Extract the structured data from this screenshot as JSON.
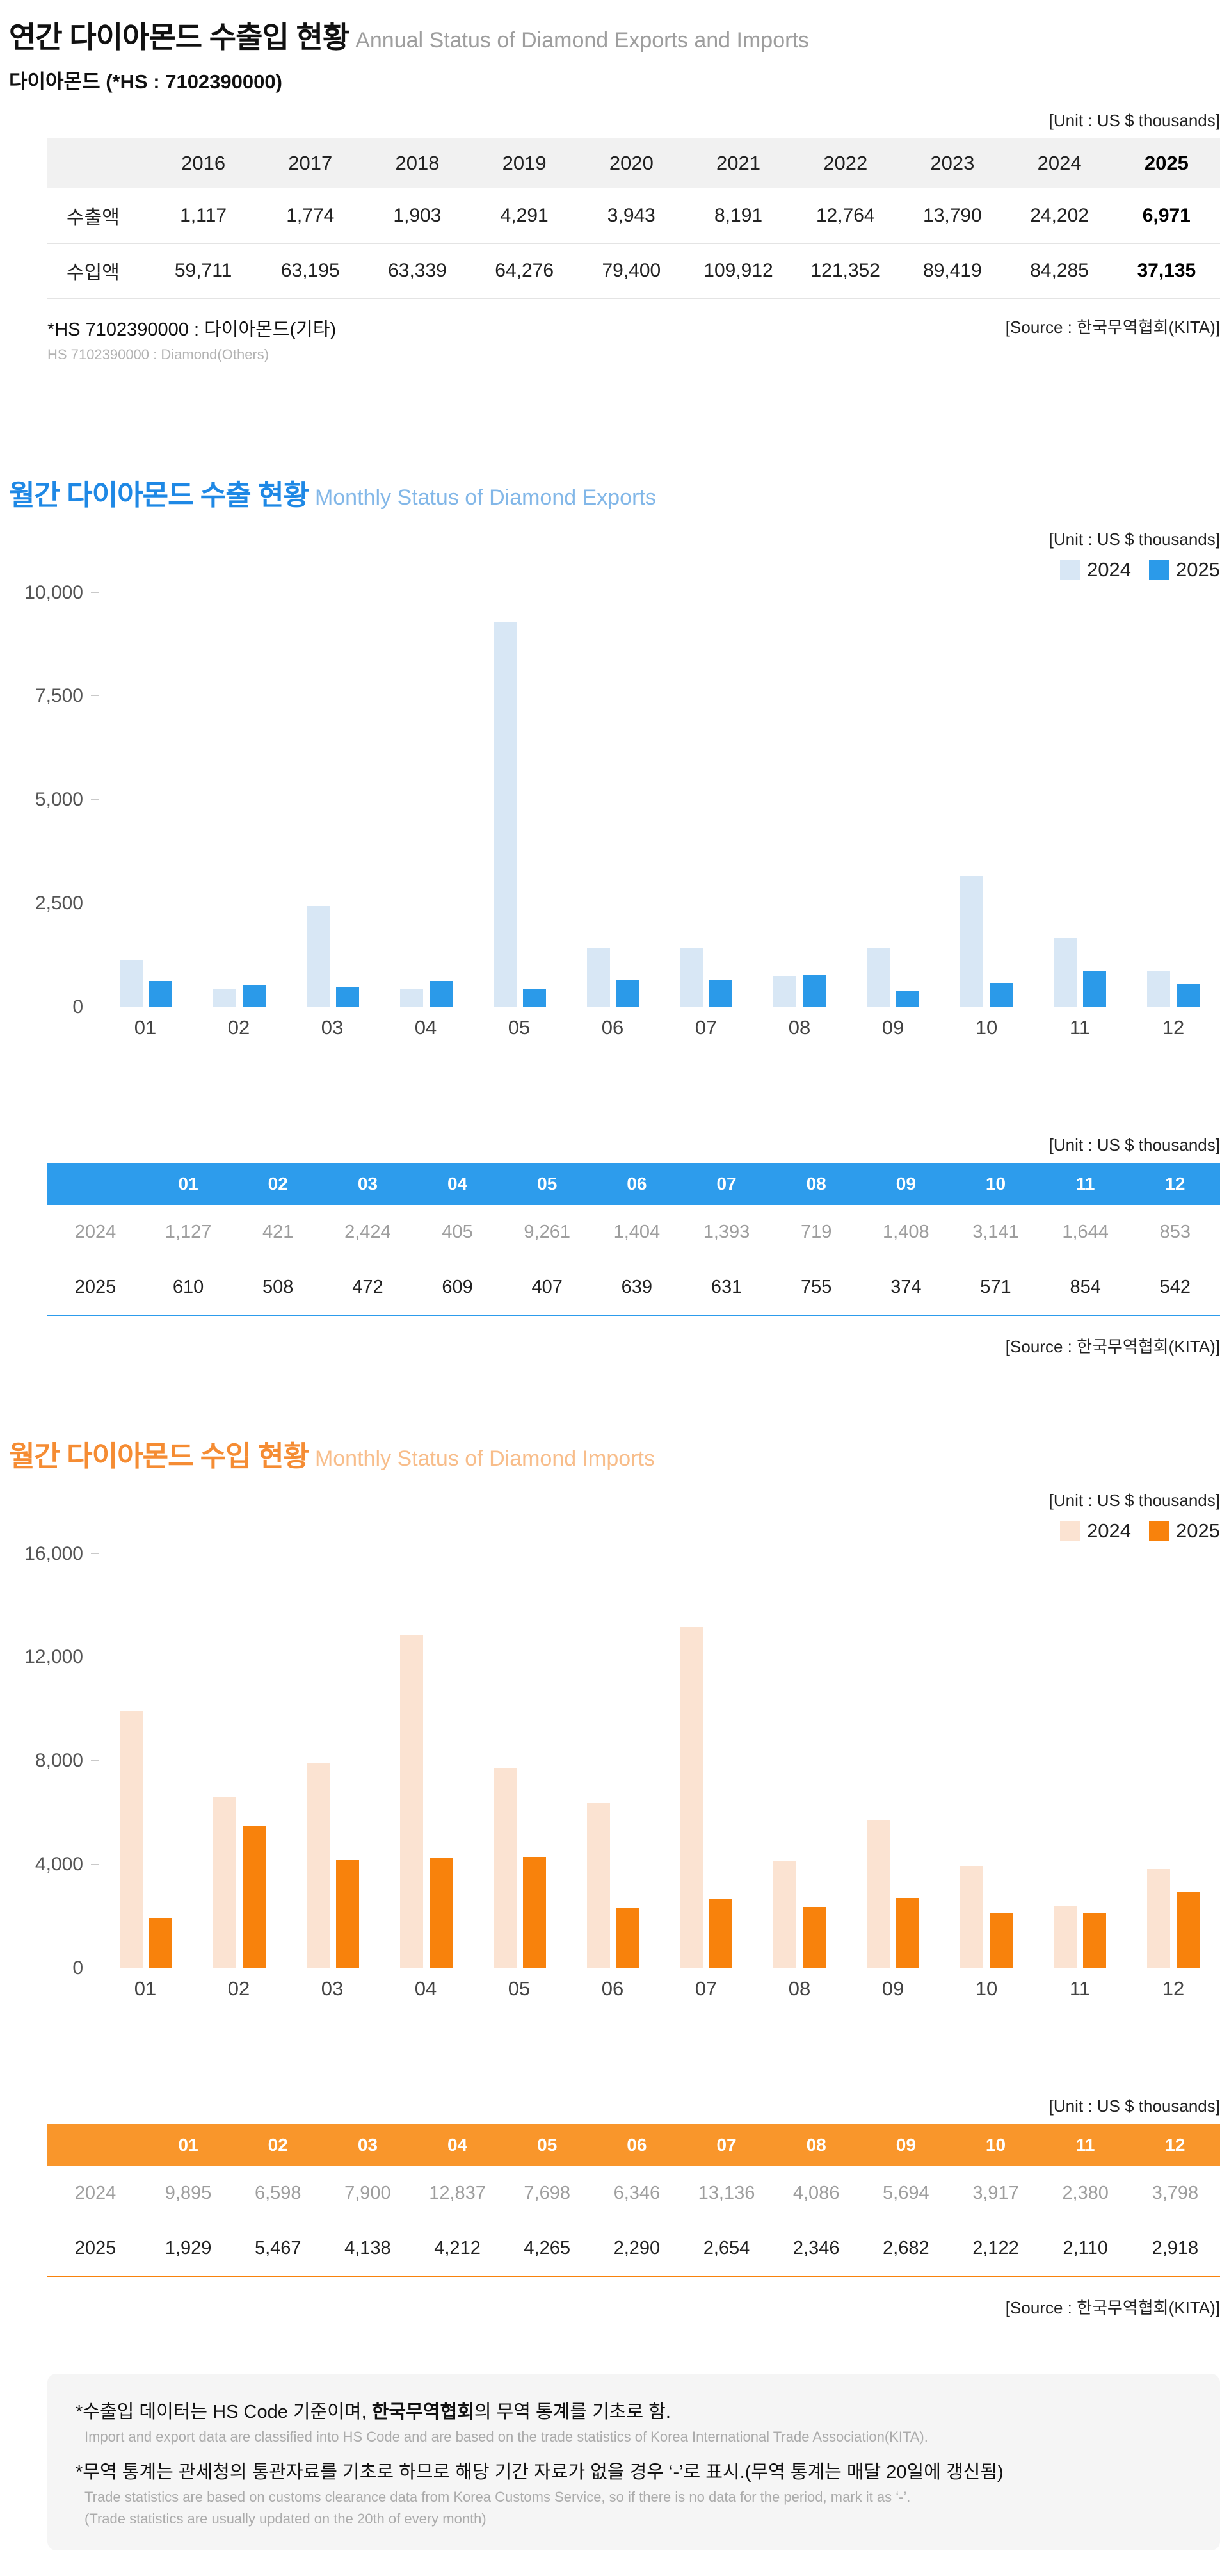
{
  "page": {
    "title_ko": "연간 다이아몬드 수출입 현황",
    "title_en": "Annual Status of Diamond Exports and Imports",
    "subtitle": "다이아몬드 (*HS : 7102390000)",
    "unit_label": "[Unit : US $ thousands]",
    "source_label": "[Source : 한국무역협회(KITA)]"
  },
  "annual_table": {
    "years": [
      "2016",
      "2017",
      "2018",
      "2019",
      "2020",
      "2021",
      "2022",
      "2023",
      "2024",
      "2025"
    ],
    "rows": [
      {
        "label": "수출액",
        "values": [
          "1,117",
          "1,774",
          "1,903",
          "4,291",
          "3,943",
          "8,191",
          "12,764",
          "13,790",
          "24,202",
          "6,971"
        ]
      },
      {
        "label": "수입액",
        "values": [
          "59,711",
          "63,195",
          "63,339",
          "64,276",
          "79,400",
          "109,912",
          "121,352",
          "89,419",
          "84,285",
          "37,135"
        ]
      }
    ],
    "footnote_ko": "*HS 7102390000 : 다이아몬드(기타)",
    "footnote_en": "HS 7102390000 : Diamond(Others)"
  },
  "exports_section": {
    "title_ko": "월간 다이아몬드 수출 현황",
    "title_en": "Monthly Status of Diamond Exports",
    "table": {
      "columns": [
        "01",
        "02",
        "03",
        "04",
        "05",
        "06",
        "07",
        "08",
        "09",
        "10",
        "11",
        "12"
      ],
      "rows": [
        {
          "label": "2024",
          "values": [
            "1,127",
            "421",
            "2,424",
            "405",
            "9,261",
            "1,404",
            "1,393",
            "719",
            "1,408",
            "3,141",
            "1,644",
            "853"
          ]
        },
        {
          "label": "2025",
          "values": [
            "610",
            "508",
            "472",
            "609",
            "407",
            "639",
            "631",
            "755",
            "374",
            "571",
            "854",
            "542"
          ]
        }
      ]
    }
  },
  "imports_section": {
    "title_ko": "월간 다이아몬드 수입 현황",
    "title_en": "Monthly Status of Diamond Imports",
    "table": {
      "columns": [
        "01",
        "02",
        "03",
        "04",
        "05",
        "06",
        "07",
        "08",
        "09",
        "10",
        "11",
        "12"
      ],
      "rows": [
        {
          "label": "2024",
          "values": [
            "9,895",
            "6,598",
            "7,900",
            "12,837",
            "7,698",
            "6,346",
            "13,136",
            "4,086",
            "5,694",
            "3,917",
            "2,380",
            "3,798"
          ]
        },
        {
          "label": "2025",
          "values": [
            "1,929",
            "5,467",
            "4,138",
            "4,212",
            "4,265",
            "2,290",
            "2,654",
            "2,346",
            "2,682",
            "2,122",
            "2,110",
            "2,918"
          ]
        }
      ]
    }
  },
  "chart_data": [
    {
      "type": "bar",
      "title": "월간 다이아몬드 수출 현황 (Monthly Status of Diamond Exports)",
      "categories": [
        "01",
        "02",
        "03",
        "04",
        "05",
        "06",
        "07",
        "08",
        "09",
        "10",
        "11",
        "12"
      ],
      "series": [
        {
          "name": "2024",
          "color": "#d8e7f5",
          "values": [
            1127,
            421,
            2424,
            405,
            9261,
            1404,
            1393,
            719,
            1408,
            3141,
            1644,
            853
          ]
        },
        {
          "name": "2025",
          "color": "#2b9ae9",
          "values": [
            610,
            508,
            472,
            609,
            407,
            639,
            631,
            755,
            374,
            571,
            854,
            542
          ]
        }
      ],
      "xlabel": "",
      "ylabel": "US $ thousands",
      "ylim": [
        0,
        10000
      ],
      "yticks": [
        0,
        2500,
        5000,
        7500,
        10000
      ],
      "grid": false,
      "legend_position": "top-right"
    },
    {
      "type": "bar",
      "title": "월간 다이아몬드 수입 현황 (Monthly Status of Diamond Imports)",
      "categories": [
        "01",
        "02",
        "03",
        "04",
        "05",
        "06",
        "07",
        "08",
        "09",
        "10",
        "11",
        "12"
      ],
      "series": [
        {
          "name": "2024",
          "color": "#fbe3d2",
          "values": [
            9895,
            6598,
            7900,
            12837,
            7698,
            6346,
            13136,
            4086,
            5694,
            3917,
            2380,
            3798
          ]
        },
        {
          "name": "2025",
          "color": "#f8820c",
          "values": [
            1929,
            5467,
            4138,
            4212,
            4265,
            2290,
            2654,
            2346,
            2682,
            2122,
            2110,
            2918
          ]
        }
      ],
      "xlabel": "",
      "ylabel": "US $ thousands",
      "ylim": [
        0,
        16000
      ],
      "yticks": [
        0,
        4000,
        8000,
        12000,
        16000
      ],
      "grid": false,
      "legend_position": "top-right"
    }
  ],
  "footer": {
    "note1_prefix": "*수출입 데이터는 HS Code 기준이며, ",
    "note1_bold": "한국무역협회",
    "note1_suffix": "의 무역 통계를 기초로 함.",
    "note1_en": "Import and export data are classified into HS Code and are based on the trade statistics of Korea International  Trade Association(KITA).",
    "note2": "*무역 통계는 관세청의 통관자료를 기초로 하므로 해당 기간 자료가 없을 경우 ‘-’로 표시.(무역 통계는 매달 20일에 갱신됨)",
    "note2_en": "Trade statistics are based on customs clearance data from Korea Customs Service, so if there is no data for the period, mark it as ‘-’.",
    "note3_en": "(Trade statistics are usually updated on the 20th of every month)"
  },
  "colors": {
    "export_title": "#1e88e5",
    "export_title_en": "#82b7e8",
    "export_bar_2024": "#d8e7f5",
    "export_bar_2025": "#2b9ae9",
    "export_table_header": "#2d9cec",
    "import_title": "#f58c33",
    "import_title_en": "#f8bd8a",
    "import_bar_2024": "#fbe3d2",
    "import_bar_2025": "#f8820c",
    "import_table_header": "#f9962b",
    "annual_header_bg": "#f1f1f1"
  }
}
